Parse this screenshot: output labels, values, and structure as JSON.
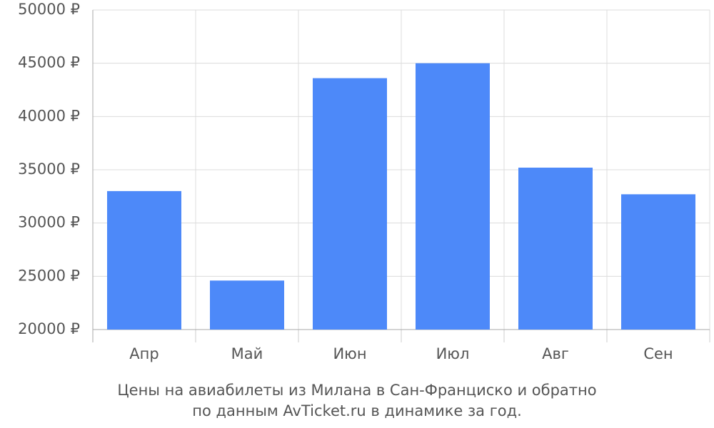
{
  "chart_data": {
    "type": "bar",
    "title": [
      "Цены на авиабилеты из Милана в Сан-Франциско и обратно",
      "по данным AvTicket.ru в динамике за год."
    ],
    "categories": [
      "Апр",
      "Май",
      "Июн",
      "Июл",
      "Авг",
      "Сен"
    ],
    "values": [
      33000,
      24600,
      43600,
      45000,
      35200,
      32700
    ],
    "color": "#4d89f9",
    "ylim": [
      20000,
      50000
    ],
    "yticks": [
      {
        "value": 20000,
        "label": "20000 ₽"
      },
      {
        "value": 25000,
        "label": "25000 ₽"
      },
      {
        "value": 30000,
        "label": "30000 ₽"
      },
      {
        "value": 35000,
        "label": "35000 ₽"
      },
      {
        "value": 40000,
        "label": "40000 ₽"
      },
      {
        "value": 45000,
        "label": "45000 ₽"
      },
      {
        "value": 50000,
        "label": "50000 ₽"
      }
    ],
    "grid": true
  }
}
